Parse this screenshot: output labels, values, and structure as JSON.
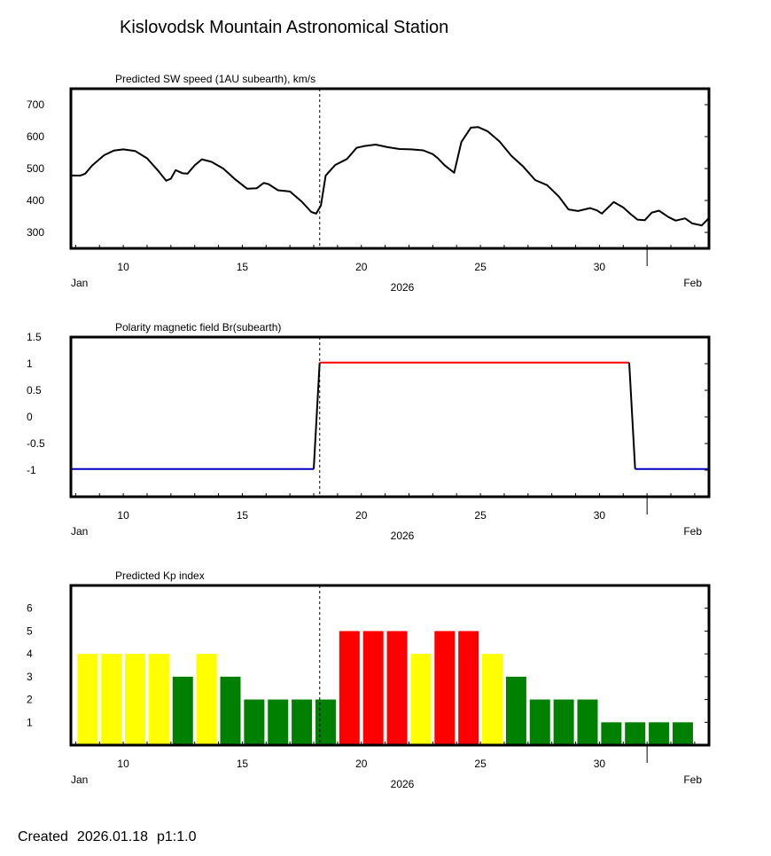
{
  "title": "Kislovodsk Mountain Astronomical Station",
  "footer": {
    "created_label": "Created",
    "created_date": "2026.01.18",
    "page_label": "p1:1.0"
  },
  "colors": {
    "kp_low": "#008000",
    "kp_mid": "#ffff00",
    "kp_high": "#ff0000",
    "polarity_pos": "#ff0000",
    "polarity_neg": "#0000c0",
    "line": "#000000"
  },
  "chart_data": [
    {
      "type": "line",
      "title": "Predicted SW speed (1AU subearth), km/s",
      "xlabel": "2026",
      "x_range": [
        7.8,
        34.6
      ],
      "ylim": [
        250,
        750
      ],
      "yticks": [
        300,
        400,
        500,
        600,
        700
      ],
      "xticks": [
        10,
        15,
        20,
        25,
        30
      ],
      "x_month_start": "Jan",
      "x_month_end": "Feb",
      "feb_tick": 32,
      "marker_x": 18.25,
      "series": [
        {
          "name": "SW speed",
          "x": [
            7.8,
            8.2,
            8.4,
            8.7,
            9.2,
            9.6,
            10.0,
            10.5,
            11.0,
            11.5,
            11.8,
            12.0,
            12.2,
            12.5,
            12.7,
            13.0,
            13.3,
            13.7,
            14.2,
            14.7,
            15.2,
            15.6,
            15.9,
            16.1,
            16.5,
            17.0,
            17.5,
            17.9,
            18.1,
            18.3,
            18.5,
            18.9,
            19.4,
            19.8,
            20.1,
            20.6,
            21.1,
            21.6,
            22.1,
            22.6,
            23.0,
            23.2,
            23.5,
            23.9,
            24.2,
            24.6,
            24.9,
            25.3,
            25.8,
            26.3,
            26.8,
            27.3,
            27.8,
            28.3,
            28.7,
            29.1,
            29.6,
            29.9,
            30.1,
            30.6,
            31.0,
            31.3,
            31.6,
            31.9,
            32.2,
            32.5,
            32.9,
            33.2,
            33.6,
            33.9,
            34.3,
            34.6
          ],
          "y": [
            478,
            478,
            484,
            510,
            542,
            556,
            560,
            555,
            532,
            490,
            462,
            468,
            495,
            485,
            484,
            510,
            529,
            521,
            500,
            466,
            437,
            438,
            455,
            451,
            432,
            428,
            396,
            364,
            359,
            384,
            478,
            511,
            530,
            565,
            570,
            575,
            567,
            561,
            560,
            557,
            545,
            533,
            510,
            487,
            583,
            628,
            630,
            617,
            585,
            540,
            506,
            464,
            448,
            412,
            372,
            367,
            376,
            369,
            359,
            395,
            378,
            358,
            340,
            338,
            362,
            368,
            348,
            337,
            344,
            328,
            322,
            345
          ]
        }
      ]
    },
    {
      "type": "line",
      "title": "Polarity magnetic field  Br(subearth)",
      "xlabel": "2026",
      "x_range": [
        7.8,
        34.6
      ],
      "ylim": [
        -1.5,
        1.5
      ],
      "yticks": [
        1.5,
        1,
        0.5,
        0,
        -0.5,
        -1
      ],
      "ytick_labels": [
        "1.5",
        "1",
        "0.5",
        "0",
        "-0.5",
        "-1"
      ],
      "xticks": [
        10,
        15,
        20,
        25,
        30
      ],
      "x_month_start": "Jan",
      "x_month_end": "Feb",
      "feb_tick": 32,
      "marker_x": 18.25,
      "series": [
        {
          "name": "negative",
          "x": [
            7.8,
            18.0
          ],
          "y": [
            -0.98,
            -0.98
          ]
        },
        {
          "name": "transition-up",
          "x": [
            18.0,
            18.25
          ],
          "y": [
            -0.98,
            1.02
          ]
        },
        {
          "name": "positive",
          "x": [
            18.25,
            31.25
          ],
          "y": [
            1.02,
            1.02
          ]
        },
        {
          "name": "transition-down",
          "x": [
            31.25,
            31.5
          ],
          "y": [
            1.02,
            -0.98
          ]
        },
        {
          "name": "negative",
          "x": [
            31.5,
            34.6
          ],
          "y": [
            -0.98,
            -0.98
          ]
        }
      ]
    },
    {
      "type": "bar",
      "title": "Predicted Kp index",
      "xlabel": "2026",
      "x_range": [
        7.8,
        34.6
      ],
      "ylim": [
        0,
        7
      ],
      "yticks": [
        1,
        2,
        3,
        4,
        5,
        6
      ],
      "xticks": [
        10,
        15,
        20,
        25,
        30
      ],
      "x_month_start": "Jan",
      "x_month_end": "Feb",
      "feb_tick": 32,
      "marker_x": 18.25,
      "bar_x": [
        8.5,
        9.5,
        10.5,
        11.5,
        12.5,
        13.5,
        14.5,
        15.5,
        16.5,
        17.5,
        18.5,
        19.5,
        20.5,
        21.5,
        22.5,
        23.5,
        24.5,
        25.5,
        26.5,
        27.5,
        28.5,
        29.5,
        30.5,
        31.5,
        32.5,
        33.5
      ],
      "values": [
        4,
        4,
        4,
        4,
        3,
        4,
        3,
        2,
        2,
        2,
        2,
        5,
        5,
        5,
        4,
        5,
        5,
        4,
        3,
        2,
        2,
        2,
        1,
        1,
        1,
        1
      ]
    }
  ]
}
